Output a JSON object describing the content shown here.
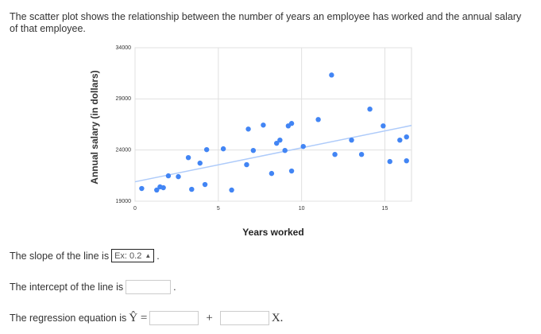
{
  "question": "The scatter plot shows the relationship between the number of years an employee has worked and the annual salary of that employee.",
  "chart_data": {
    "type": "scatter",
    "x_label": "Years worked",
    "y_label": "Annual salary (in dollars)",
    "xlim": [
      0,
      16.6
    ],
    "ylim": [
      19000,
      34000
    ],
    "xticks": [
      0,
      5,
      10,
      15
    ],
    "yticks": [
      19000,
      24000,
      29000,
      34000
    ],
    "grid": true,
    "color": "#4285f4",
    "x": [
      0.4,
      1.3,
      1.5,
      1.7,
      2.0,
      2.6,
      3.2,
      3.4,
      3.9,
      4.2,
      4.3,
      5.3,
      5.8,
      6.7,
      6.8,
      7.1,
      7.7,
      8.2,
      8.5,
      8.7,
      9.0,
      9.2,
      9.4,
      9.4,
      10.1,
      11.0,
      11.8,
      12.0,
      13.0,
      13.6,
      14.1,
      14.9,
      15.3,
      15.9,
      16.3,
      16.3
    ],
    "values": [
      20240,
      20090,
      20400,
      20320,
      21480,
      21400,
      23260,
      20160,
      22720,
      20630,
      24040,
      24120,
      20090,
      22570,
      26050,
      23960,
      26440,
      21710,
      24660,
      24970,
      23960,
      26360,
      26600,
      21950,
      24350,
      26980,
      31330,
      23570,
      24970,
      23570,
      28000,
      26360,
      22880,
      24970,
      25280,
      22950
    ],
    "trendline": {
      "color": "#aecbfa",
      "x": [
        0,
        16.6
      ],
      "y": [
        20900,
        26400
      ]
    }
  },
  "slope_label": "The slope of the line is",
  "slope_placeholder": "Ex: 0.2",
  "period": ".",
  "intercept_label": "The intercept of the line is",
  "regression_label": "The regression equation is",
  "y_hat": "Ŷ =",
  "plus": "+",
  "x_var": "X."
}
